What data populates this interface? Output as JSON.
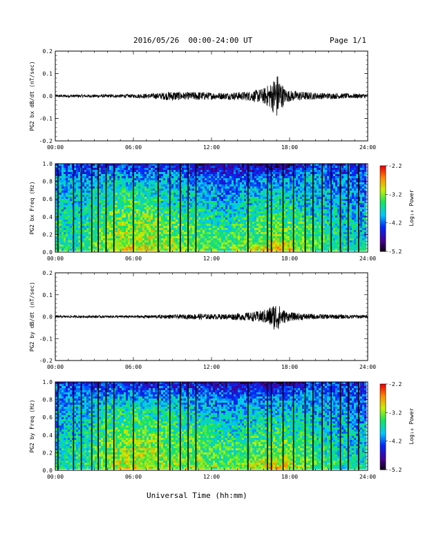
{
  "header": {
    "title": "2016/05/26  00:00-24:00 UT",
    "page": "Page 1/1"
  },
  "xlabel": "Universal Time (hh:mm)",
  "chart_data": [
    {
      "type": "line",
      "ylabel": "PG2 bx dB/dt (nT/sec)",
      "xlim": [
        0,
        24
      ],
      "ylim": [
        -0.2,
        0.2
      ],
      "xticklabels": [
        "00:00",
        "06:00",
        "12:00",
        "18:00",
        "24:00"
      ],
      "yticklabels": [
        "0.2",
        "0.1",
        "0.0",
        "-0.1",
        "-0.2"
      ],
      "series": [
        {
          "x": [
            0,
            6,
            8,
            9,
            10,
            11,
            12,
            13,
            14,
            15,
            16,
            16.6,
            17,
            17.2,
            17.4,
            17.6,
            18,
            19,
            20,
            22,
            24
          ],
          "envelope": [
            0.006,
            0.008,
            0.014,
            0.022,
            0.016,
            0.02,
            0.016,
            0.015,
            0.018,
            0.022,
            0.035,
            0.06,
            0.105,
            0.09,
            0.06,
            0.035,
            0.025,
            0.02,
            0.015,
            0.012,
            0.01
          ]
        }
      ]
    },
    {
      "type": "heatmap",
      "ylabel": "PG2 bx Freq (Hz)",
      "xlim": [
        0,
        24
      ],
      "ylim": [
        0,
        1
      ],
      "xticklabels": [
        "00:00",
        "06:00",
        "12:00",
        "18:00",
        "24:00"
      ],
      "yticklabels": [
        "1.0",
        "0.8",
        "0.6",
        "0.4",
        "0.2",
        "0.0"
      ],
      "colorbar": {
        "label": "Log₁₀ Power",
        "range": [
          -5.2,
          -2.2
        ],
        "ticklabels": [
          "-2.2",
          "-3.2",
          "-4.2",
          "-5.2"
        ]
      },
      "gap_lines_hours": [
        0.2,
        1.4,
        2.0,
        2.8,
        3.3,
        3.9,
        4.5,
        6.0,
        7.9,
        8.8,
        9.6,
        10.2,
        10.8,
        14.8,
        16.3,
        16.6,
        17.5,
        18.3,
        19.2,
        19.8,
        20.5,
        21.2,
        21.9,
        22.5,
        23.3
      ],
      "rows": [
        [
          -4.2,
          -4.5,
          -4.3,
          -4.6,
          -4.4,
          -4.7,
          -4.6,
          -4.8,
          -4.9,
          -4.3,
          -4.4,
          -4.4
        ],
        [
          -4.0,
          -4.1,
          -3.9,
          -4.0,
          -4.0,
          -4.2,
          -4.3,
          -4.2,
          -4.1,
          -4.0,
          -4.2,
          -4.3
        ],
        [
          -3.9,
          -3.9,
          -3.6,
          -3.6,
          -3.8,
          -3.9,
          -4.1,
          -3.9,
          -3.8,
          -3.9,
          -4.0,
          -4.1
        ],
        [
          -3.8,
          -3.8,
          -3.5,
          -3.4,
          -3.7,
          -3.7,
          -3.9,
          -3.7,
          -3.6,
          -3.8,
          -3.9,
          -4.0
        ],
        [
          -3.7,
          -3.7,
          -3.3,
          -3.2,
          -3.4,
          -3.5,
          -3.7,
          -3.5,
          -3.4,
          -3.6,
          -3.8,
          -3.9
        ],
        [
          -3.6,
          -3.6,
          -3.2,
          -3.1,
          -3.3,
          -3.4,
          -3.5,
          -3.4,
          -3.2,
          -3.5,
          -3.7,
          -3.8
        ],
        [
          -3.6,
          -3.6,
          -3.1,
          -3.0,
          -3.2,
          -3.3,
          -3.4,
          -3.0,
          -2.8,
          -3.3,
          -3.6,
          -3.7
        ]
      ]
    },
    {
      "type": "line",
      "ylabel": "PG2 by dB/dt (nT/sec)",
      "xlim": [
        0,
        24
      ],
      "ylim": [
        -0.2,
        0.2
      ],
      "xticklabels": [
        "00:00",
        "06:00",
        "12:00",
        "18:00",
        "24:00"
      ],
      "yticklabels": [
        "0.2",
        "0.1",
        "0.0",
        "-0.1",
        "-0.2"
      ],
      "series": [
        {
          "x": [
            0,
            6,
            8,
            10,
            11,
            12,
            13,
            14,
            15,
            16,
            16.6,
            17,
            17.3,
            17.6,
            18,
            19,
            20,
            22,
            24
          ],
          "envelope": [
            0.005,
            0.006,
            0.008,
            0.01,
            0.014,
            0.012,
            0.012,
            0.016,
            0.02,
            0.03,
            0.05,
            0.07,
            0.045,
            0.03,
            0.02,
            0.015,
            0.012,
            0.01,
            0.008
          ]
        }
      ]
    },
    {
      "type": "heatmap",
      "ylabel": "PG2 by Freq (Hz)",
      "xlim": [
        0,
        24
      ],
      "ylim": [
        0,
        1
      ],
      "xticklabels": [
        "00:00",
        "06:00",
        "12:00",
        "18:00",
        "24:00"
      ],
      "yticklabels": [
        "1.0",
        "0.8",
        "0.6",
        "0.4",
        "0.2",
        "0.0"
      ],
      "colorbar": {
        "label": "Log₁₀ Power",
        "range": [
          -5.2,
          -2.2
        ],
        "ticklabels": [
          "-2.2",
          "-3.2",
          "-4.2",
          "-5.2"
        ]
      },
      "gap_lines_hours": [
        0.2,
        1.4,
        2.0,
        2.8,
        3.3,
        3.9,
        4.5,
        6.0,
        7.9,
        8.8,
        9.6,
        10.2,
        10.8,
        14.8,
        16.3,
        16.6,
        17.5,
        18.3,
        19.2,
        19.8,
        20.5,
        21.2,
        21.9,
        22.5,
        23.3
      ],
      "rows": [
        [
          -4.3,
          -4.5,
          -4.4,
          -4.6,
          -4.5,
          -4.6,
          -4.7,
          -4.8,
          -4.9,
          -4.4,
          -4.4,
          -4.5
        ],
        [
          -4.1,
          -4.1,
          -3.9,
          -4.0,
          -4.0,
          -4.1,
          -4.2,
          -4.2,
          -4.1,
          -4.0,
          -4.2,
          -4.3
        ],
        [
          -4.0,
          -3.9,
          -3.6,
          -3.6,
          -3.7,
          -3.8,
          -4.0,
          -3.9,
          -3.8,
          -3.9,
          -4.0,
          -4.1
        ],
        [
          -3.9,
          -3.8,
          -3.5,
          -3.4,
          -3.6,
          -3.6,
          -3.8,
          -3.7,
          -3.6,
          -3.8,
          -3.9,
          -4.0
        ],
        [
          -3.8,
          -3.7,
          -3.3,
          -3.2,
          -3.4,
          -3.4,
          -3.6,
          -3.5,
          -3.4,
          -3.6,
          -3.8,
          -3.9
        ],
        [
          -3.7,
          -3.6,
          -3.2,
          -3.1,
          -3.3,
          -3.3,
          -3.5,
          -3.4,
          -3.2,
          -3.5,
          -3.7,
          -3.8
        ],
        [
          -3.6,
          -3.6,
          -3.1,
          -3.0,
          -3.2,
          -3.2,
          -3.3,
          -3.0,
          -2.8,
          -3.3,
          -3.6,
          -3.7
        ]
      ]
    }
  ]
}
